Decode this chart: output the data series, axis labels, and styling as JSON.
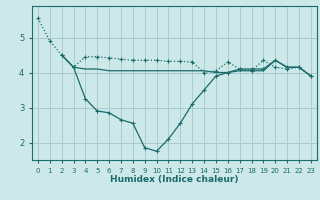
{
  "xlabel": "Humidex (Indice chaleur)",
  "bg_color": "#cce8e8",
  "grid_color": "#aacccc",
  "line_color": "#1a6b6b",
  "xlim": [
    -0.5,
    23.5
  ],
  "ylim": [
    1.5,
    5.9
  ],
  "yticks": [
    2,
    3,
    4,
    5
  ],
  "xticks": [
    0,
    1,
    2,
    3,
    4,
    5,
    6,
    7,
    8,
    9,
    10,
    11,
    12,
    13,
    14,
    15,
    16,
    17,
    18,
    19,
    20,
    21,
    22,
    23
  ],
  "line1_x": [
    0,
    1,
    2,
    3,
    4,
    5,
    6,
    7,
    8,
    9,
    10,
    11,
    12,
    13,
    14,
    15,
    16,
    17,
    18,
    19,
    20,
    21,
    22,
    23
  ],
  "line1_y": [
    5.55,
    4.9,
    4.5,
    4.15,
    4.45,
    4.45,
    4.42,
    4.38,
    4.35,
    4.35,
    4.35,
    4.32,
    4.32,
    4.3,
    4.0,
    4.05,
    4.3,
    4.1,
    4.05,
    4.35,
    4.15,
    4.1,
    4.15,
    3.9
  ],
  "line2_x": [
    2,
    3,
    4,
    5,
    6,
    7,
    8,
    9,
    10,
    11,
    12,
    13,
    14,
    15,
    16,
    17,
    18,
    19,
    20,
    21,
    22,
    23
  ],
  "line2_y": [
    4.5,
    4.15,
    3.25,
    2.9,
    2.85,
    2.65,
    2.55,
    1.85,
    1.75,
    2.1,
    2.55,
    3.1,
    3.5,
    3.9,
    4.0,
    4.1,
    4.1,
    4.1,
    4.35,
    4.15,
    4.15,
    3.9
  ],
  "line3_x": [
    2,
    3,
    4,
    5,
    6,
    7,
    8,
    9,
    10,
    11,
    12,
    13,
    14,
    15,
    16,
    17,
    18,
    19,
    20,
    21,
    22,
    23
  ],
  "line3_y": [
    4.5,
    4.15,
    4.1,
    4.1,
    4.05,
    4.05,
    4.05,
    4.05,
    4.05,
    4.05,
    4.05,
    4.05,
    4.05,
    4.0,
    4.0,
    4.05,
    4.05,
    4.05,
    4.35,
    4.15,
    4.15,
    3.9
  ]
}
